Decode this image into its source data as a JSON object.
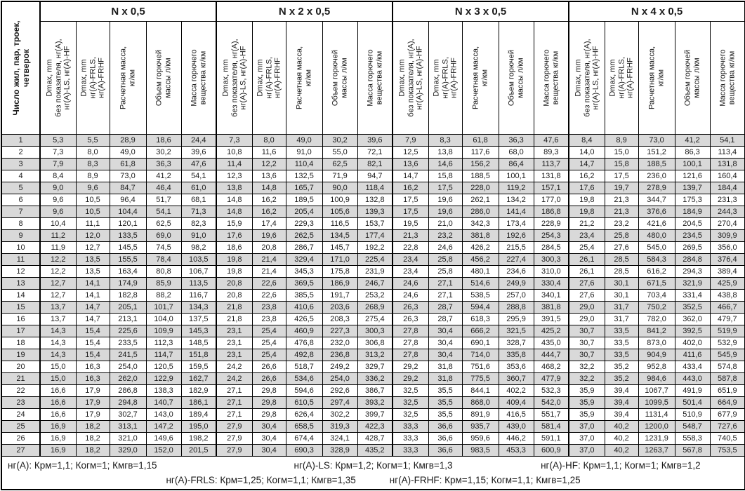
{
  "table": {
    "row_header_label": "Число жил, пар, троек,\nчетверок",
    "groups": [
      {
        "title": "N x 0,5"
      },
      {
        "title": "N x 2 x 0,5"
      },
      {
        "title": "N x 3 x 0,5"
      },
      {
        "title": "N x 4 x 0,5"
      }
    ],
    "column_headers": [
      "Dmax, mm\nбез показателя, нг(А),\nнг(А)-LS, нг(А)-HF",
      "Dmax, mm\nнг(А)-FRLS,\nнг(А)-FRHF",
      "Расчетная масса,\nкг/км",
      "Объем горючей\nмассы л/км",
      "Масса горючего\nвещества кг/км"
    ],
    "colors": {
      "stripe": "#d9d9d9",
      "border": "#000000",
      "background": "#ffffff"
    },
    "rows": [
      {
        "n": "1",
        "cells": [
          "5,3",
          "5,5",
          "28,9",
          "18,6",
          "24,4",
          "7,3",
          "8,0",
          "49,0",
          "30,2",
          "39,6",
          "7,9",
          "8,3",
          "61,8",
          "36,3",
          "47,6",
          "8,4",
          "8,9",
          "73,0",
          "41,2",
          "54,1"
        ]
      },
      {
        "n": "2",
        "cells": [
          "7,3",
          "8,0",
          "49,0",
          "30,2",
          "39,6",
          "10,8",
          "11,6",
          "91,0",
          "55,0",
          "72,1",
          "12,5",
          "13,8",
          "117,6",
          "68,0",
          "89,3",
          "14,0",
          "15,0",
          "151,2",
          "86,3",
          "113,4"
        ]
      },
      {
        "n": "3",
        "cells": [
          "7,9",
          "8,3",
          "61,8",
          "36,3",
          "47,6",
          "11,4",
          "12,2",
          "110,4",
          "62,5",
          "82,1",
          "13,6",
          "14,6",
          "156,2",
          "86,4",
          "113,7",
          "14,7",
          "15,8",
          "188,5",
          "100,1",
          "131,8"
        ]
      },
      {
        "n": "4",
        "cells": [
          "8,4",
          "8,9",
          "73,0",
          "41,2",
          "54,1",
          "12,3",
          "13,6",
          "132,5",
          "71,9",
          "94,7",
          "14,7",
          "15,8",
          "188,5",
          "100,1",
          "131,8",
          "16,2",
          "17,5",
          "236,0",
          "121,6",
          "160,4"
        ]
      },
      {
        "n": "5",
        "cells": [
          "9,0",
          "9,6",
          "84,7",
          "46,4",
          "61,0",
          "13,8",
          "14,8",
          "165,7",
          "90,0",
          "118,4",
          "16,2",
          "17,5",
          "228,0",
          "119,2",
          "157,1",
          "17,6",
          "19,7",
          "278,9",
          "139,7",
          "184,4"
        ]
      },
      {
        "n": "6",
        "cells": [
          "9,6",
          "10,5",
          "96,4",
          "51,7",
          "68,1",
          "14,8",
          "16,2",
          "189,5",
          "100,9",
          "132,8",
          "17,5",
          "19,6",
          "262,1",
          "134,2",
          "177,0",
          "19,8",
          "21,3",
          "344,7",
          "175,3",
          "231,3"
        ]
      },
      {
        "n": "7",
        "cells": [
          "9,6",
          "10,5",
          "104,4",
          "54,1",
          "71,3",
          "14,8",
          "16,2",
          "205,4",
          "105,6",
          "139,3",
          "17,5",
          "19,6",
          "286,0",
          "141,4",
          "186,8",
          "19,8",
          "21,3",
          "376,6",
          "184,9",
          "244,3"
        ]
      },
      {
        "n": "8",
        "cells": [
          "10,4",
          "11,1",
          "120,1",
          "62,5",
          "82,3",
          "15,9",
          "17,4",
          "229,3",
          "116,5",
          "153,7",
          "19,5",
          "21,0",
          "342,3",
          "173,4",
          "228,9",
          "21,2",
          "23,2",
          "421,6",
          "204,5",
          "270,4"
        ]
      },
      {
        "n": "9",
        "cells": [
          "11,2",
          "12,0",
          "133,5",
          "69,0",
          "91,0",
          "17,6",
          "19,6",
          "262,5",
          "134,5",
          "177,4",
          "21,3",
          "23,2",
          "381,8",
          "192,6",
          "254,3",
          "23,4",
          "25,8",
          "480,0",
          "234,5",
          "309,9"
        ]
      },
      {
        "n": "10",
        "cells": [
          "11,9",
          "12,7",
          "145,5",
          "74,5",
          "98,2",
          "18,6",
          "20,8",
          "286,7",
          "145,7",
          "192,2",
          "22,8",
          "24,6",
          "426,2",
          "215,5",
          "284,5",
          "25,4",
          "27,6",
          "545,0",
          "269,5",
          "356,0"
        ]
      },
      {
        "n": "11",
        "cells": [
          "12,2",
          "13,5",
          "155,5",
          "78,4",
          "103,5",
          "19,8",
          "21,4",
          "329,4",
          "171,0",
          "225,4",
          "23,4",
          "25,8",
          "456,2",
          "227,4",
          "300,3",
          "26,1",
          "28,5",
          "584,3",
          "284,8",
          "376,4"
        ]
      },
      {
        "n": "12",
        "cells": [
          "12,2",
          "13,5",
          "163,4",
          "80,8",
          "106,7",
          "19,8",
          "21,4",
          "345,3",
          "175,8",
          "231,9",
          "23,4",
          "25,8",
          "480,1",
          "234,6",
          "310,0",
          "26,1",
          "28,5",
          "616,2",
          "294,3",
          "389,4"
        ]
      },
      {
        "n": "13",
        "cells": [
          "12,7",
          "14,1",
          "174,9",
          "85,9",
          "113,5",
          "20,8",
          "22,6",
          "369,5",
          "186,9",
          "246,7",
          "24,6",
          "27,1",
          "514,6",
          "249,9",
          "330,4",
          "27,6",
          "30,1",
          "671,5",
          "321,9",
          "425,9"
        ]
      },
      {
        "n": "14",
        "cells": [
          "12,7",
          "14,1",
          "182,8",
          "88,2",
          "116,7",
          "20,8",
          "22,6",
          "385,5",
          "191,7",
          "253,2",
          "24,6",
          "27,1",
          "538,5",
          "257,0",
          "340,1",
          "27,6",
          "30,1",
          "703,4",
          "331,4",
          "438,8"
        ]
      },
      {
        "n": "15",
        "cells": [
          "13,7",
          "14,7",
          "205,1",
          "101,7",
          "134,3",
          "21,8",
          "23,8",
          "410,6",
          "203,6",
          "268,9",
          "26,3",
          "28,7",
          "594,4",
          "288,8",
          "381,8",
          "29,0",
          "31,7",
          "750,2",
          "352,5",
          "466,7"
        ]
      },
      {
        "n": "16",
        "cells": [
          "13,7",
          "14,7",
          "213,1",
          "104,0",
          "137,5",
          "21,8",
          "23,8",
          "426,5",
          "208,3",
          "275,4",
          "26,3",
          "28,7",
          "618,3",
          "295,9",
          "391,5",
          "29,0",
          "31,7",
          "782,0",
          "362,0",
          "479,7"
        ]
      },
      {
        "n": "17",
        "cells": [
          "14,3",
          "15,4",
          "225,6",
          "109,9",
          "145,3",
          "23,1",
          "25,4",
          "460,9",
          "227,3",
          "300,3",
          "27,8",
          "30,4",
          "666,2",
          "321,5",
          "425,2",
          "30,7",
          "33,5",
          "841,2",
          "392,5",
          "519,9"
        ]
      },
      {
        "n": "18",
        "cells": [
          "14,3",
          "15,4",
          "233,5",
          "112,3",
          "148,5",
          "23,1",
          "25,4",
          "476,8",
          "232,0",
          "306,8",
          "27,8",
          "30,4",
          "690,1",
          "328,7",
          "435,0",
          "30,7",
          "33,5",
          "873,0",
          "402,0",
          "532,9"
        ]
      },
      {
        "n": "19",
        "cells": [
          "14,3",
          "15,4",
          "241,5",
          "114,7",
          "151,8",
          "23,1",
          "25,4",
          "492,8",
          "236,8",
          "313,2",
          "27,8",
          "30,4",
          "714,0",
          "335,8",
          "444,7",
          "30,7",
          "33,5",
          "904,9",
          "411,6",
          "545,9"
        ]
      },
      {
        "n": "20",
        "cells": [
          "15,0",
          "16,3",
          "254,0",
          "120,5",
          "159,5",
          "24,2",
          "26,6",
          "518,7",
          "249,2",
          "329,7",
          "29,2",
          "31,8",
          "751,6",
          "353,6",
          "468,2",
          "32,2",
          "35,2",
          "952,8",
          "433,4",
          "574,8"
        ]
      },
      {
        "n": "21",
        "cells": [
          "15,0",
          "16,3",
          "262,0",
          "122,9",
          "162,7",
          "24,2",
          "26,6",
          "534,6",
          "254,0",
          "336,2",
          "29,2",
          "31,8",
          "775,5",
          "360,7",
          "477,9",
          "32,2",
          "35,2",
          "984,6",
          "443,0",
          "587,8"
        ]
      },
      {
        "n": "22",
        "cells": [
          "16,6",
          "17,9",
          "286,8",
          "138,3",
          "182,9",
          "27,1",
          "29,8",
          "594,6",
          "292,6",
          "386,7",
          "32,5",
          "35,5",
          "844,1",
          "402,2",
          "532,3",
          "35,9",
          "39,4",
          "1067,7",
          "491,9",
          "651,9"
        ]
      },
      {
        "n": "23",
        "cells": [
          "16,6",
          "17,9",
          "294,8",
          "140,7",
          "186,1",
          "27,1",
          "29,8",
          "610,5",
          "297,4",
          "393,2",
          "32,5",
          "35,5",
          "868,0",
          "409,4",
          "542,0",
          "35,9",
          "39,4",
          "1099,5",
          "501,4",
          "664,9"
        ]
      },
      {
        "n": "24",
        "cells": [
          "16,6",
          "17,9",
          "302,7",
          "143,0",
          "189,4",
          "27,1",
          "29,8",
          "626,4",
          "302,2",
          "399,7",
          "32,5",
          "35,5",
          "891,9",
          "416,5",
          "551,7",
          "35,9",
          "39,4",
          "1131,4",
          "510,9",
          "677,9"
        ]
      },
      {
        "n": "25",
        "cells": [
          "16,9",
          "18,2",
          "313,1",
          "147,2",
          "195,0",
          "27,9",
          "30,4",
          "658,5",
          "319,3",
          "422,3",
          "33,3",
          "36,6",
          "935,7",
          "439,0",
          "581,4",
          "37,0",
          "40,2",
          "1200,0",
          "548,7",
          "727,6"
        ]
      },
      {
        "n": "26",
        "cells": [
          "16,9",
          "18,2",
          "321,0",
          "149,6",
          "198,2",
          "27,9",
          "30,4",
          "674,4",
          "324,1",
          "428,7",
          "33,3",
          "36,6",
          "959,6",
          "446,2",
          "591,1",
          "37,0",
          "40,2",
          "1231,9",
          "558,3",
          "740,5"
        ]
      },
      {
        "n": "27",
        "cells": [
          "16,9",
          "18,2",
          "329,0",
          "152,0",
          "201,5",
          "27,9",
          "30,4",
          "690,3",
          "328,9",
          "435,2",
          "33,3",
          "36,6",
          "983,5",
          "453,3",
          "600,9",
          "37,0",
          "40,2",
          "1263,7",
          "567,8",
          "753,5"
        ]
      }
    ],
    "footer": {
      "line1": [
        "нг(А): Крм=1,1;  Когм=1;  Кмгв=1,15",
        "нг(А)-LS: Крм=1,2;  Когм=1;  Кмгв=1,3",
        "нг(А)-HF: Крм=1,1;  Когм=1;  Кмгв=1,2"
      ],
      "line2": [
        "нг(А)-FRLS: Крм=1,25;  Когм=1,1;  Кмгв=1,35",
        "нг(А)-FRHF: Крм=1,15;  Когм=1,1;  Кмгв=1,25"
      ]
    }
  }
}
